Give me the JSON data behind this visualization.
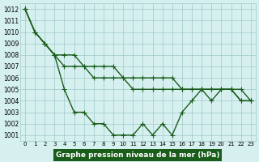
{
  "x": [
    0,
    1,
    2,
    3,
    4,
    5,
    6,
    7,
    8,
    9,
    10,
    11,
    12,
    13,
    14,
    15,
    16,
    17,
    18,
    19,
    20,
    21,
    22,
    23
  ],
  "line1": [
    1012,
    1010,
    1009,
    1008,
    1005,
    1003,
    1003,
    1002,
    1002,
    1001,
    1001,
    1001,
    1002,
    1001,
    1002,
    1001,
    1003,
    1004,
    1005,
    1004,
    1005,
    1005,
    1004,
    1004
  ],
  "line2": [
    1012,
    1010,
    1009,
    1008,
    1007,
    1007,
    1007,
    1006,
    1006,
    1006,
    1006,
    1005,
    1005,
    1005,
    1005,
    1005,
    1005,
    1005,
    1005,
    1005,
    1005,
    1005,
    1004,
    1004
  ],
  "line3": [
    1012,
    1010,
    1009,
    1008,
    1008,
    1008,
    1007,
    1007,
    1007,
    1007,
    1006,
    1006,
    1006,
    1006,
    1006,
    1006,
    1005,
    1005,
    1005,
    1005,
    1005,
    1005,
    1005,
    1004
  ],
  "line_color": "#1a5c1a",
  "background_color": "#d6f0f0",
  "grid_color": "#a0c8c8",
  "xlabel": "Graphe pression niveau de la mer (hPa)",
  "xlabel_bg": "#1a5c1a",
  "xlabel_color": "#ffffff",
  "ylim_min": 1001,
  "ylim_max": 1012,
  "yticks": [
    1001,
    1002,
    1003,
    1004,
    1005,
    1006,
    1007,
    1008,
    1009,
    1010,
    1011,
    1012
  ],
  "xticks": [
    0,
    1,
    2,
    3,
    4,
    5,
    6,
    7,
    8,
    9,
    10,
    11,
    12,
    13,
    14,
    15,
    16,
    17,
    18,
    19,
    20,
    21,
    22,
    23
  ],
  "marker": "+",
  "markersize": 4,
  "linewidth": 1.0
}
